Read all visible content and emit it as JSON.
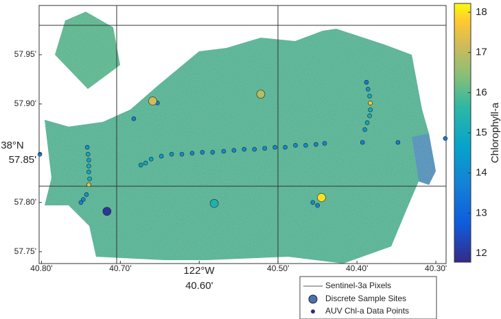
{
  "map": {
    "type": "scatter",
    "xlim": [
      40.803,
      40.287
    ],
    "ylim": [
      57.738,
      58.0
    ],
    "xticks": [
      {
        "value": 40.8,
        "label": "40.80'"
      },
      {
        "value": 40.7,
        "label": "40.70'"
      },
      {
        "value": 40.6,
        "label": "40.60'"
      },
      {
        "value": 40.5,
        "label": "40.50'"
      },
      {
        "value": 40.4,
        "label": "40.40'"
      },
      {
        "value": 40.3,
        "label": "40.30'"
      }
    ],
    "yticks": [
      {
        "value": 57.95,
        "label": "57.95'"
      },
      {
        "value": 57.9,
        "label": "57.90'"
      },
      {
        "value": 57.85,
        "label": "57.85'"
      },
      {
        "value": 57.8,
        "label": "57.80'"
      },
      {
        "value": 57.75,
        "label": "57.75'"
      }
    ],
    "lat_degree_label": "38°N",
    "lon_degree_label": "122°W",
    "colorbar": {
      "label": "Chlorophyll-a",
      "clim": [
        11.78,
        18.22
      ],
      "ticks": [
        12,
        13,
        14,
        15,
        16,
        17,
        18
      ]
    },
    "legend": [
      "Sentinel-3a Pixels",
      "Discrete Sample Sites",
      "AUV Chl-a Data Points"
    ],
    "sample_sites": {
      "lon": [
        40.659,
        40.522,
        40.445,
        40.717,
        40.581
      ],
      "lat": [
        57.903,
        57.91,
        57.805,
        57.791,
        57.799
      ],
      "values": [
        17.2,
        16.9,
        18.0,
        12.0,
        15.3
      ]
    },
    "auv_points": {
      "lon": [
        40.742,
        40.741,
        40.74,
        40.74,
        40.74,
        40.739,
        40.74,
        40.743,
        40.747,
        40.75,
        40.674,
        40.668,
        40.661,
        40.648,
        40.635,
        40.622,
        40.609,
        40.596,
        40.583,
        40.569,
        40.556,
        40.543,
        40.53,
        40.517,
        40.504,
        40.491,
        40.478,
        40.465,
        40.452,
        40.441,
        40.388,
        40.386,
        40.384,
        40.383,
        40.383,
        40.384,
        40.387,
        40.39,
        40.683,
        40.653,
        40.393,
        40.348,
        40.288,
        40.802,
        40.456,
        40.45
      ],
      "lat": [
        57.856,
        57.849,
        57.843,
        57.837,
        57.831,
        57.824,
        57.818,
        57.808,
        57.803,
        57.8,
        57.838,
        57.84,
        57.844,
        57.847,
        57.849,
        57.849,
        57.85,
        57.851,
        57.851,
        57.852,
        57.853,
        57.854,
        57.854,
        57.855,
        57.856,
        57.856,
        57.858,
        57.858,
        57.859,
        57.86,
        57.922,
        57.915,
        57.908,
        57.901,
        57.894,
        57.888,
        57.881,
        57.874,
        57.885,
        57.901,
        57.861,
        57.861,
        57.865,
        57.849,
        57.8,
        57.797
      ],
      "values": [
        14.2,
        15.0,
        14.8,
        15.2,
        14.9,
        15.1,
        17.5,
        14.3,
        14.0,
        13.8,
        14.6,
        14.9,
        14.7,
        14.4,
        14.2,
        14.1,
        14.0,
        13.9,
        14.0,
        14.1,
        14.0,
        13.9,
        14.0,
        14.1,
        14.0,
        13.9,
        14.0,
        14.1,
        13.9,
        13.8,
        13.5,
        14.2,
        15.0,
        17.8,
        15.2,
        15.1,
        14.9,
        14.3,
        13.6,
        13.6,
        13.7,
        13.6,
        13.5,
        13.6,
        14.0,
        13.9
      ]
    }
  }
}
